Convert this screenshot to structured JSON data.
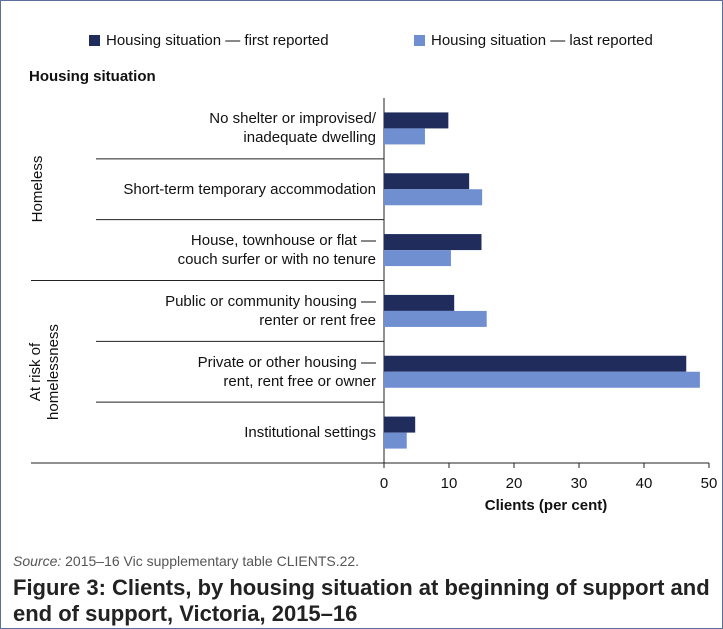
{
  "chart_data": {
    "type": "bar",
    "orientation": "horizontal",
    "y_title": "Housing situation",
    "x_title": "Clients (per cent)",
    "categories": [
      "No shelter or improvised/\ninadequate dwelling",
      "Short-term temporary accommodation",
      "House, townhouse or flat —\ncouch surfer or with no tenure",
      "Public or community housing —\nrenter or rent free",
      "Private or other housing —\nrent, rent free or owner",
      "Institutional settings"
    ],
    "groups": [
      {
        "label": "Homeless",
        "size": 3
      },
      {
        "label": "At risk of\nhomelessness",
        "size": 3
      }
    ],
    "series": [
      {
        "name": "Housing situation — first reported",
        "color": "#1f2c5c",
        "values": [
          9.9,
          13.1,
          15,
          10.8,
          46.5,
          4.8
        ]
      },
      {
        "name": "Housing situation — last reported",
        "color": "#6f8fd1",
        "values": [
          6.3,
          15.1,
          10.3,
          15.8,
          48.6,
          3.5
        ]
      }
    ],
    "xlim": [
      0,
      50
    ],
    "xticks": [
      0,
      10,
      20,
      30,
      40,
      50
    ],
    "source_label": "Source:",
    "source": "2015–16 Vic supplementary table CLIENTS.22.",
    "caption": "Figure 3: Clients, by housing situation at beginning of support and end of support, Victoria, 2015–16"
  }
}
